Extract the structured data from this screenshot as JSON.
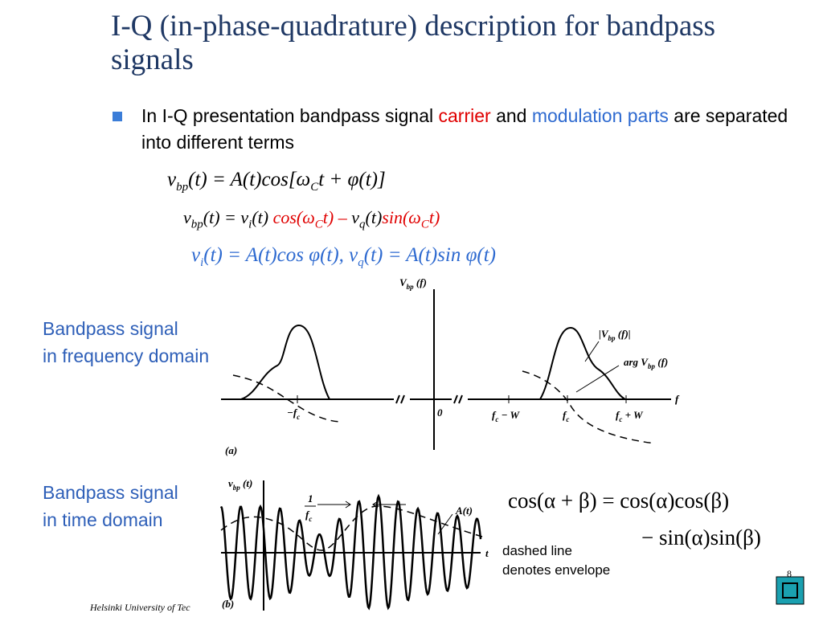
{
  "header": {
    "title": "I-Q (in-phase-quadrature) description for bandpass signals"
  },
  "bullet": {
    "segments": [
      "In I-Q presentation bandpass signal",
      "carrier",
      "and",
      "modulation parts",
      "are separated into different terms"
    ]
  },
  "equations": [
    [
      "v",
      "bp",
      "(t) = A(t)cos[ω",
      "C",
      "t + φ(t)]"
    ],
    [
      "v",
      "bp",
      "(t) = v",
      "i",
      "(t)",
      "cos(ω",
      "C",
      "t) –",
      "v",
      "q",
      "(t)",
      "sin(ω",
      "C",
      "t)"
    ],
    [
      "v",
      "i",
      "(t) = A(t)cos φ(t), v",
      "q",
      "(t) = A(t)sin φ(t)"
    ]
  ],
  "identity": [
    "cos(α + β) = cos(α)cos(β)",
    "− sin(α)sin(β)"
  ],
  "frequency_label": [
    "Bandpass signal",
    "in frequency domain"
  ],
  "time_label": [
    "Bandpass signal",
    "in time domain"
  ],
  "figure_a": {
    "y_label": [
      "V",
      "bp",
      " (f)"
    ],
    "magnitude_label": [
      "|V",
      "bp",
      " (f)|"
    ],
    "phase_label": [
      "arg V",
      "bp",
      " (f)"
    ],
    "x_label": "f",
    "ticks": [
      [
        "−f",
        "c"
      ],
      "0",
      [
        "f",
        "c",
        " − W"
      ],
      [
        "f",
        "c"
      ],
      [
        "f",
        "c",
        " + W"
      ]
    ],
    "panel": "(a)"
  },
  "figure_b": {
    "y_label": [
      "v",
      "bp",
      " (t)"
    ],
    "period": [
      "1",
      "f",
      "c"
    ],
    "envelope_label": "A(t)",
    "x_label": "t",
    "panel": "(b)"
  },
  "annotation": [
    "dashed line",
    "denotes envelope"
  ],
  "footer": {
    "institution": "Helsinki University of Tec",
    "page": "8"
  }
}
